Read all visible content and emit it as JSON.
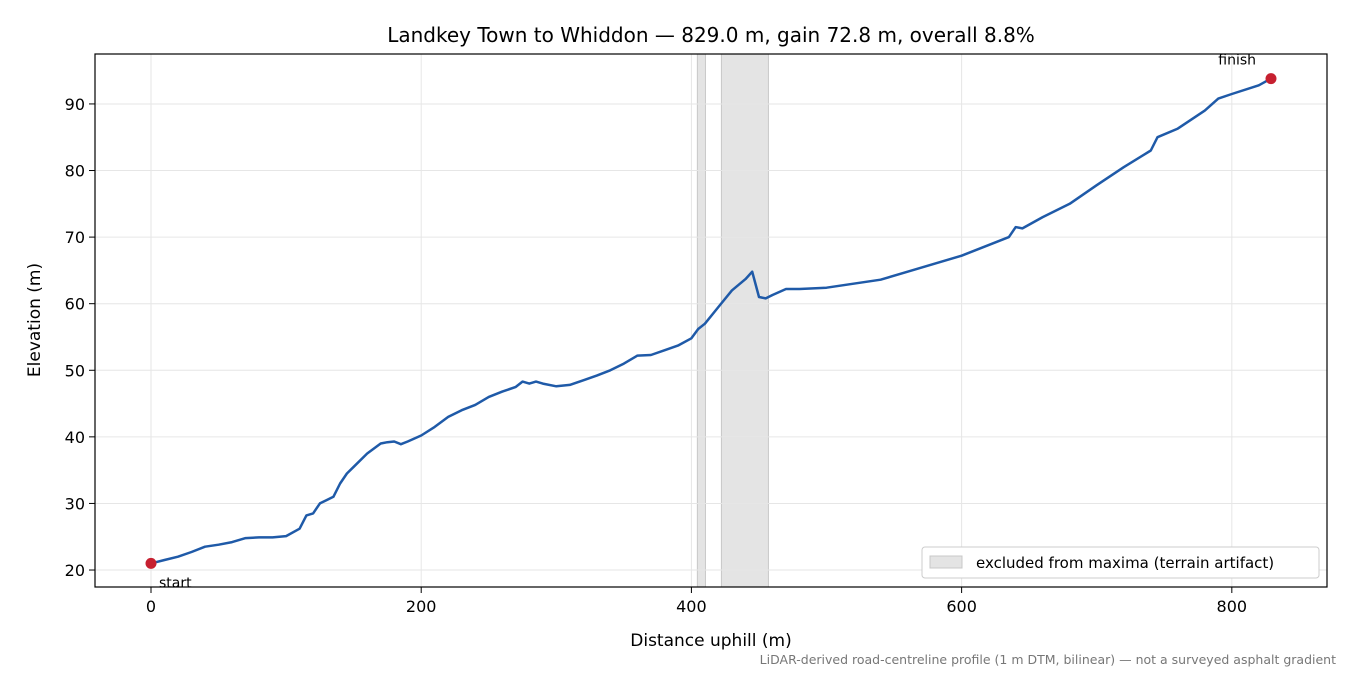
{
  "chart_data": {
    "type": "line",
    "title": "Landkey Town to Whiddon — 829.0 m, gain 72.8 m, overall 8.8%",
    "xlabel": "Distance uphill (m)",
    "ylabel": "Elevation (m)",
    "footnote": "LiDAR-derived road-centreline profile (1 m DTM, bilinear) — not a surveyed asphalt gradient",
    "x": [
      0,
      10,
      20,
      30,
      40,
      50,
      60,
      70,
      80,
      90,
      100,
      110,
      115,
      120,
      125,
      130,
      135,
      140,
      145,
      150,
      160,
      170,
      175,
      180,
      185,
      190,
      200,
      210,
      220,
      230,
      240,
      250,
      260,
      270,
      275,
      280,
      285,
      290,
      300,
      310,
      320,
      330,
      340,
      350,
      360,
      370,
      380,
      390,
      400,
      405,
      410,
      420,
      430,
      440,
      445,
      450,
      455,
      460,
      470,
      480,
      500,
      520,
      540,
      560,
      580,
      600,
      620,
      635,
      640,
      645,
      660,
      680,
      700,
      720,
      740,
      745,
      760,
      780,
      790,
      800,
      820,
      829
    ],
    "values": [
      21,
      21.5,
      22,
      22.7,
      23.5,
      23.8,
      24.2,
      24.8,
      24.9,
      24.9,
      25.1,
      26.2,
      28.2,
      28.5,
      30,
      30.5,
      31,
      33,
      34.5,
      35.5,
      37.5,
      39,
      39.2,
      39.3,
      38.9,
      39.3,
      40.2,
      41.5,
      43,
      44,
      44.8,
      46,
      46.8,
      47.5,
      48.3,
      48,
      48.3,
      48,
      47.6,
      47.8,
      48.5,
      49.2,
      50,
      51,
      52.2,
      52.3,
      53,
      53.7,
      54.8,
      56.2,
      57,
      59.5,
      62,
      63.7,
      64.8,
      61,
      60.8,
      61.3,
      62.2,
      62.2,
      62.4,
      63,
      63.6,
      64.8,
      66,
      67.2,
      68.8,
      70,
      71.5,
      71.3,
      73,
      75,
      77.8,
      80.5,
      83,
      85,
      86.3,
      89,
      90.8,
      91.5,
      92.8,
      93.8
    ],
    "color": "#1f5aa8",
    "point_color": "#c62030",
    "excluded": {
      "label": "excluded from maxima (terrain artifact)",
      "color": "#e4e4e4",
      "ranges": [
        [
          404.4,
          410.4
        ],
        [
          422.2,
          457
        ]
      ]
    },
    "annotations": [
      {
        "text": "start",
        "x": 0,
        "y": 21
      },
      {
        "text": "finish",
        "x": 829,
        "y": 93.8
      }
    ],
    "xlim": [
      -41.45,
      870.45
    ],
    "ylim": [
      17.45,
      97.5
    ],
    "xticks": [
      0,
      200,
      400,
      600,
      800
    ],
    "yticks": [
      20,
      30,
      40,
      50,
      60,
      70,
      80,
      90
    ],
    "grid": true,
    "legend": "lower right"
  }
}
